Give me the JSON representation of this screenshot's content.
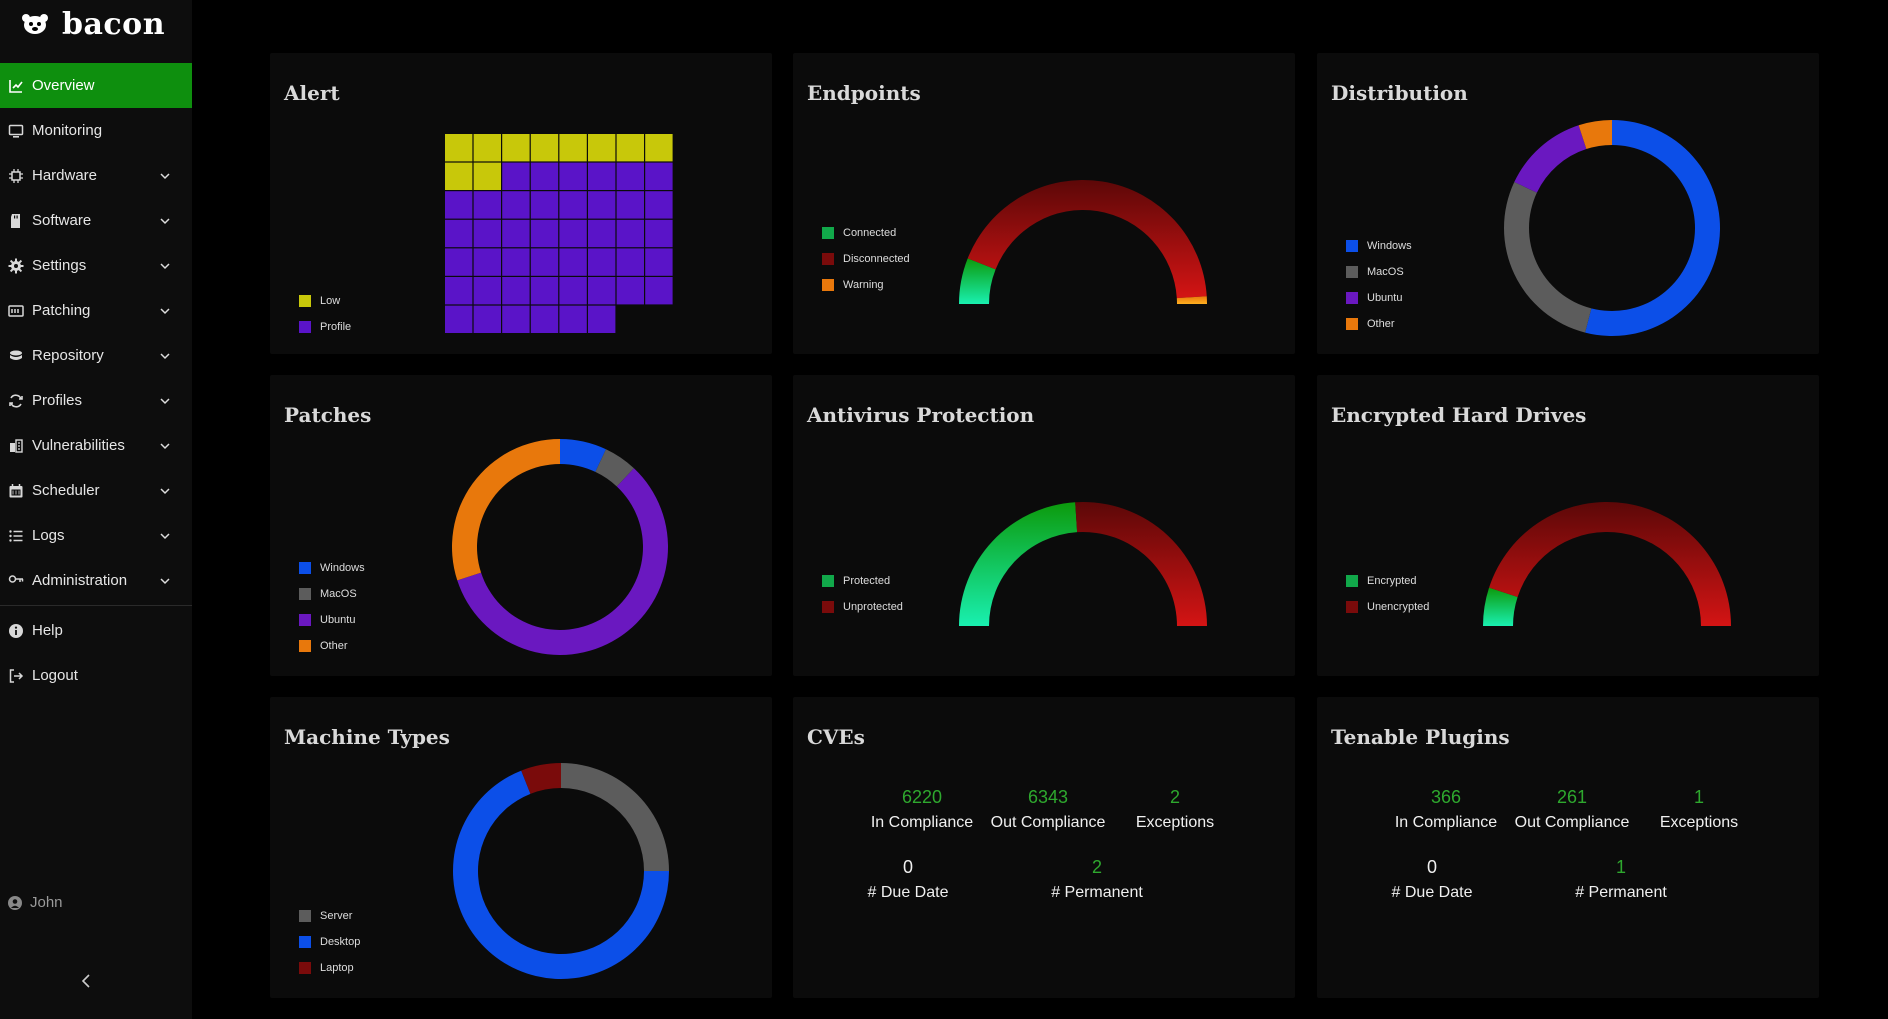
{
  "app": {
    "title": "bacon"
  },
  "sidebar": {
    "items": [
      {
        "label": "Overview",
        "icon": "chart-line-icon",
        "active": true,
        "has_children": false
      },
      {
        "label": "Monitoring",
        "icon": "monitor-icon",
        "has_children": false
      },
      {
        "label": "Hardware",
        "icon": "chip-icon",
        "has_children": true
      },
      {
        "label": "Software",
        "icon": "sdcard-icon",
        "has_children": true
      },
      {
        "label": "Settings",
        "icon": "gear-icon",
        "has_children": true
      },
      {
        "label": "Patching",
        "icon": "patch-icon",
        "has_children": true
      },
      {
        "label": "Repository",
        "icon": "repository-icon",
        "has_children": true
      },
      {
        "label": "Profiles",
        "icon": "sync-icon",
        "has_children": true
      },
      {
        "label": "Vulnerabilities",
        "icon": "vulnerability-icon",
        "has_children": true
      },
      {
        "label": "Scheduler",
        "icon": "calendar-icon",
        "has_children": true
      },
      {
        "label": "Logs",
        "icon": "list-icon",
        "has_children": true
      },
      {
        "label": "Administration",
        "icon": "key-icon",
        "has_children": true
      }
    ],
    "bottom_items": [
      {
        "label": "Help",
        "icon": "info-icon"
      },
      {
        "label": "Logout",
        "icon": "logout-icon"
      }
    ],
    "user": "John"
  },
  "colors": {
    "accent_green": "#0e8f0e",
    "yellow": "#c8c80a",
    "purple": "#5a14c8",
    "green": "#11a84a",
    "dark_red": "#7a0b0b",
    "orange": "#e8780c",
    "blue": "#0c4fe8",
    "gray": "#5c5c5c",
    "violet": "#6a18c0",
    "stat_green": "#2ea82e"
  },
  "cards": {
    "alert": {
      "title": "Alert",
      "legend": [
        "Low",
        "Profile"
      ],
      "chart_data": {
        "type": "waffle",
        "categories": [
          "Low",
          "Profile"
        ],
        "values": [
          10,
          44
        ]
      }
    },
    "endpoints": {
      "title": "Endpoints",
      "legend": [
        "Connected",
        "Disconnected",
        "Warning"
      ],
      "chart_data": {
        "type": "gauge",
        "categories": [
          "Connected",
          "Disconnected",
          "Warning"
        ],
        "values": [
          12,
          86,
          2
        ]
      }
    },
    "distribution": {
      "title": "Distribution",
      "legend": [
        "Windows",
        "MacOS",
        "Ubuntu",
        "Other"
      ],
      "chart_data": {
        "type": "donut",
        "categories": [
          "Windows",
          "MacOS",
          "Ubuntu",
          "Other"
        ],
        "values": [
          54,
          28,
          13,
          5
        ]
      }
    },
    "patches": {
      "title": "Patches",
      "legend": [
        "Windows",
        "MacOS",
        "Ubuntu",
        "Other"
      ],
      "chart_data": {
        "type": "donut",
        "categories": [
          "Windows",
          "MacOS",
          "Ubuntu",
          "Other"
        ],
        "values": [
          7,
          5,
          58,
          30
        ]
      }
    },
    "antivirus": {
      "title": "Antivirus Protection",
      "legend": [
        "Protected",
        "Unprotected"
      ],
      "chart_data": {
        "type": "gauge",
        "categories": [
          "Protected",
          "Unprotected"
        ],
        "values": [
          48,
          52
        ]
      }
    },
    "encrypted": {
      "title": "Encrypted Hard Drives",
      "legend": [
        "Encrypted",
        "Unencrypted"
      ],
      "chart_data": {
        "type": "gauge",
        "categories": [
          "Encrypted",
          "Unencrypted"
        ],
        "values": [
          10,
          90
        ]
      }
    },
    "machine_types": {
      "title": "Machine Types",
      "legend": [
        "Server",
        "Desktop",
        "Laptop"
      ],
      "chart_data": {
        "type": "donut",
        "categories": [
          "Server",
          "Desktop",
          "Laptop"
        ],
        "values": [
          25,
          69,
          6
        ]
      }
    },
    "cves": {
      "title": "CVEs",
      "stats": [
        {
          "value": "6220",
          "label": "In Compliance"
        },
        {
          "value": "6343",
          "label": "Out Compliance"
        },
        {
          "value": "2",
          "label": "Exceptions"
        },
        {
          "value": "0",
          "label": "# Due Date"
        },
        {
          "value": "2",
          "label": "# Permanent"
        }
      ]
    },
    "tenable": {
      "title": "Tenable Plugins",
      "stats": [
        {
          "value": "366",
          "label": "In Compliance"
        },
        {
          "value": "261",
          "label": "Out Compliance"
        },
        {
          "value": "1",
          "label": "Exceptions"
        },
        {
          "value": "0",
          "label": "# Due Date"
        },
        {
          "value": "1",
          "label": "# Permanent"
        }
      ]
    }
  }
}
